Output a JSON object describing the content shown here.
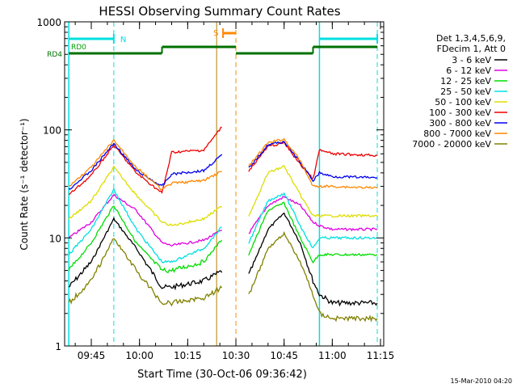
{
  "chart_data": {
    "type": "line",
    "title": "HESSI Observing Summary Count Rates",
    "xlabel": "Start Time (30-Oct-06 09:36:42)",
    "ylabel": "Count Rate (s⁻¹ detector⁻¹)",
    "yscale": "log",
    "ylim": [
      1,
      1000
    ],
    "xlim": [
      "09:36:42",
      "11:16:00"
    ],
    "x_ticks": [
      "09:45",
      "10:00",
      "10:15",
      "10:30",
      "10:45",
      "11:00",
      "11:15"
    ],
    "y_ticks": [
      "1",
      "10",
      "100",
      "1000"
    ],
    "footer_date": "15-Mar-2010 04:20",
    "legend": {
      "placement": "right",
      "header": [
        "Det 1,3,4,5,6,9,",
        "FDecim 1, Att 0"
      ]
    },
    "series": [
      {
        "name": "3 - 6 keV",
        "color": "#000000",
        "x": [
          "09:38",
          "09:45",
          "09:52",
          "09:59",
          "10:07",
          "10:10",
          "10:20",
          "10:26",
          "10:27",
          "10:34",
          "10:40",
          "10:45",
          "10:50",
          "10:54",
          "10:56",
          "11:00",
          "11:14"
        ],
        "y": [
          3.5,
          6,
          15,
          8,
          3.5,
          3.5,
          4,
          5,
          null,
          4.5,
          12,
          17,
          9,
          4,
          3,
          2.5,
          2.5
        ]
      },
      {
        "name": "6 - 12 keV",
        "color": "#e000e0",
        "x": [
          "09:38",
          "09:45",
          "09:52",
          "09:59",
          "10:07",
          "10:10",
          "10:20",
          "10:26",
          "10:27",
          "10:34",
          "10:40",
          "10:45",
          "10:50",
          "10:54",
          "10:56",
          "11:00",
          "11:14"
        ],
        "y": [
          10,
          14,
          25,
          18,
          9,
          8.5,
          9.5,
          12,
          null,
          11,
          20,
          24,
          20,
          14,
          13,
          12,
          12
        ]
      },
      {
        "name": "12 - 25 keV",
        "color": "#00dd00",
        "x": [
          "09:38",
          "09:45",
          "09:52",
          "09:59",
          "10:07",
          "10:10",
          "10:20",
          "10:26",
          "10:27",
          "10:34",
          "10:40",
          "10:45",
          "10:50",
          "10:54",
          "10:56",
          "11:00",
          "11:14"
        ],
        "y": [
          5,
          9,
          20,
          9,
          5,
          5,
          6,
          10,
          null,
          7,
          18,
          21,
          10,
          6,
          7,
          7,
          7
        ]
      },
      {
        "name": "25 - 50 keV",
        "color": "#00e0e0",
        "x": [
          "09:38",
          "09:45",
          "09:52",
          "09:59",
          "10:07",
          "10:10",
          "10:20",
          "10:26",
          "10:27",
          "10:34",
          "10:40",
          "10:45",
          "10:50",
          "10:54",
          "10:56",
          "11:00",
          "11:14"
        ],
        "y": [
          7,
          12,
          28,
          12,
          6,
          6,
          8,
          13,
          null,
          9,
          22,
          26,
          13,
          8,
          10,
          10,
          10
        ]
      },
      {
        "name": "50 - 100 keV",
        "color": "#dddd00",
        "x": [
          "09:38",
          "09:45",
          "09:52",
          "09:59",
          "10:07",
          "10:10",
          "10:20",
          "10:26",
          "10:27",
          "10:34",
          "10:40",
          "10:45",
          "10:50",
          "10:54",
          "10:56",
          "11:00",
          "11:14"
        ],
        "y": [
          15,
          22,
          45,
          25,
          14,
          13,
          15,
          20,
          null,
          16,
          40,
          46,
          25,
          16,
          16,
          16,
          16
        ]
      },
      {
        "name": "100 - 300 keV",
        "color": "#ee0000",
        "x": [
          "09:38",
          "09:45",
          "09:52",
          "09:59",
          "10:07",
          "10:10",
          "10:20",
          "10:26",
          "10:27",
          "10:34",
          "10:40",
          "10:45",
          "10:50",
          "10:54",
          "10:56",
          "11:00",
          "11:14"
        ],
        "y": [
          25,
          38,
          72,
          40,
          26,
          62,
          65,
          110,
          null,
          42,
          70,
          76,
          48,
          35,
          65,
          60,
          58
        ]
      },
      {
        "name": "300 - 800 keV",
        "color": "#0000ee",
        "x": [
          "09:38",
          "09:45",
          "09:52",
          "09:59",
          "10:07",
          "10:10",
          "10:20",
          "10:26",
          "10:27",
          "10:34",
          "10:40",
          "10:45",
          "10:50",
          "10:54",
          "10:56",
          "11:00",
          "11:14"
        ],
        "y": [
          28,
          42,
          75,
          42,
          30,
          39,
          42,
          60,
          null,
          44,
          73,
          78,
          50,
          34,
          40,
          37,
          36
        ]
      },
      {
        "name": "800 - 7000 keV",
        "color": "#ff8800",
        "x": [
          "09:38",
          "09:45",
          "09:52",
          "09:59",
          "10:07",
          "10:10",
          "10:20",
          "10:26",
          "10:27",
          "10:34",
          "10:40",
          "10:45",
          "10:50",
          "10:54",
          "10:56",
          "11:00",
          "11:14"
        ],
        "y": [
          30,
          45,
          80,
          45,
          28,
          32,
          34,
          42,
          null,
          46,
          76,
          82,
          52,
          30,
          30,
          30,
          29
        ]
      },
      {
        "name": "7000 - 20000 keV",
        "color": "#808000",
        "x": [
          "09:38",
          "09:45",
          "09:52",
          "09:59",
          "10:07",
          "10:10",
          "10:20",
          "10:26",
          "10:27",
          "10:34",
          "10:40",
          "10:45",
          "10:50",
          "10:54",
          "10:56",
          "11:00",
          "11:14"
        ],
        "y": [
          2.5,
          4,
          10,
          5,
          2.5,
          2.5,
          2.8,
          3.5,
          null,
          3,
          8,
          11,
          6,
          3,
          2,
          1.8,
          1.8
        ]
      }
    ],
    "annotations": [
      {
        "label": "N",
        "color": "#00e0e0"
      },
      {
        "label": "S",
        "color": "#ff8800"
      },
      {
        "label": "RD0",
        "color": "#00a000"
      },
      {
        "label": "RD4",
        "color": "#007000"
      }
    ]
  }
}
